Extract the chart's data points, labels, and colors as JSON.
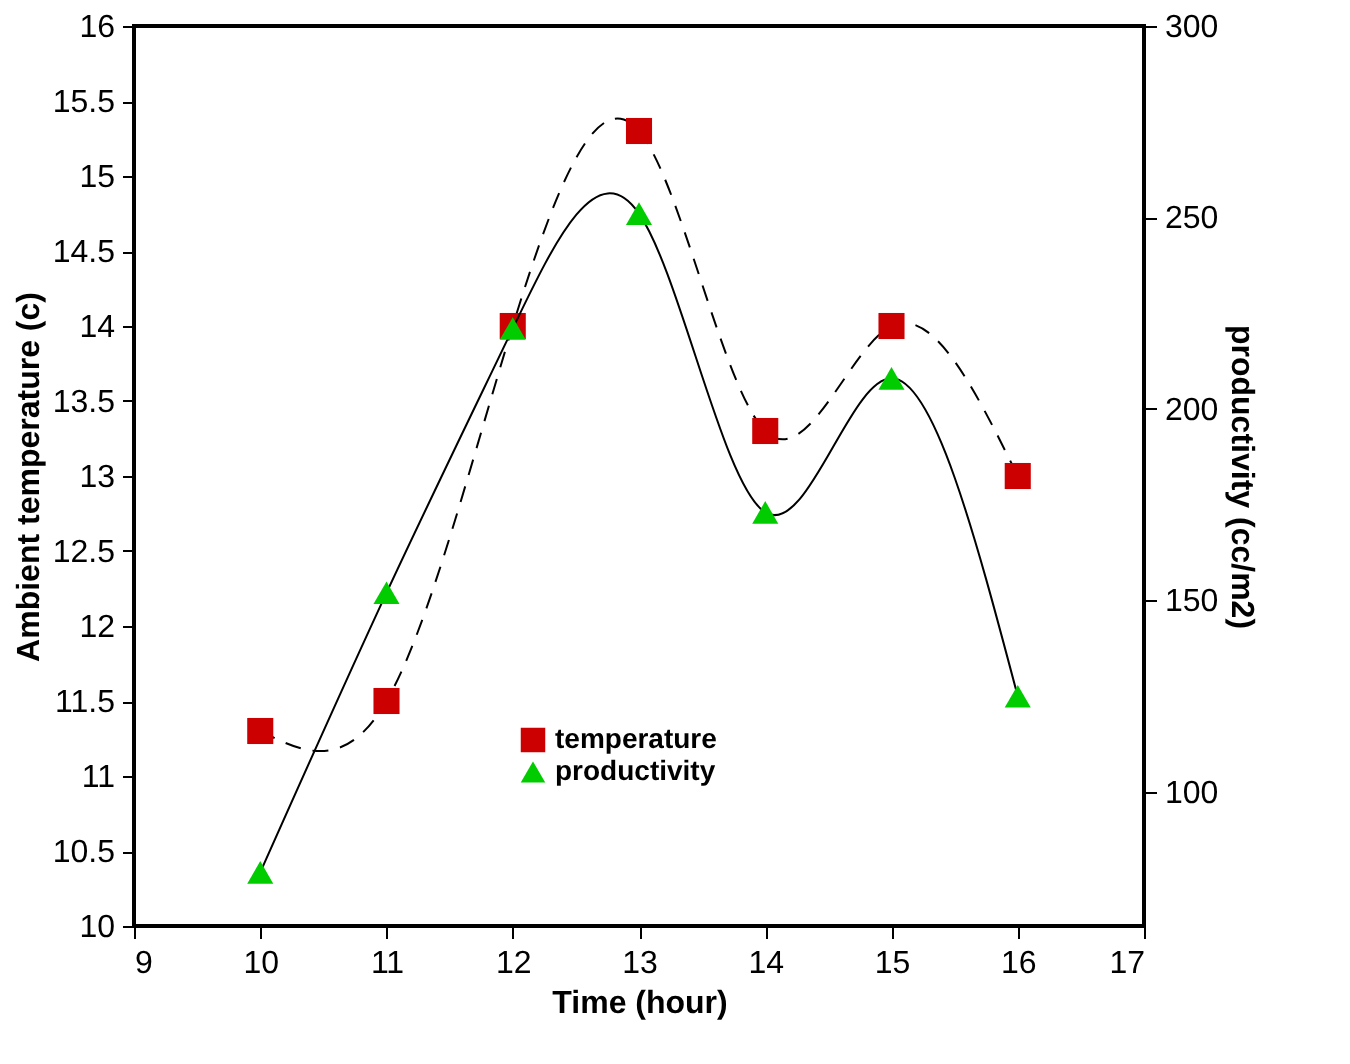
{
  "chart_data": {
    "type": "line",
    "xlabel": "Time (hour)",
    "ylabel": "Ambient temperature (c)",
    "y2label": "productivity (cc/m2)",
    "x": [
      10,
      11,
      12,
      13,
      14,
      15,
      16
    ],
    "series": [
      {
        "name": "temperature",
        "color": "#cc0000",
        "marker": "square",
        "line_style": "dashed",
        "values": [
          11.3,
          11.5,
          14.0,
          15.3,
          13.3,
          14.0,
          13.0
        ]
      },
      {
        "name": "productivity",
        "color": "#00cc00",
        "marker": "triangle",
        "line_style": "solid",
        "axis": "y2",
        "values": [
          79,
          152,
          221,
          251,
          173,
          208,
          125
        ]
      }
    ],
    "xlim": [
      9,
      17
    ],
    "xticks": [
      9,
      10,
      11,
      12,
      13,
      14,
      15,
      16,
      17
    ],
    "ylim": [
      10,
      16
    ],
    "yticks": [
      10,
      10.5,
      11,
      11.5,
      12,
      12.5,
      13,
      13.5,
      14,
      14.5,
      15,
      15.5,
      16
    ],
    "y2lim": [
      65,
      300
    ],
    "y2ticks": [
      100,
      150,
      200,
      250,
      300
    ],
    "grid": false,
    "legend": "bottom"
  }
}
